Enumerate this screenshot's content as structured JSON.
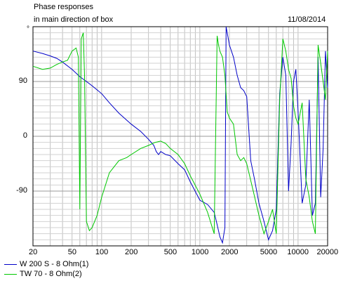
{
  "header": {
    "title_line1": "Phase responses",
    "title_line2": "in main direction of box",
    "date": "11/08/2014",
    "unit": "°"
  },
  "chart_data": {
    "type": "line",
    "title": "Phase responses in main direction of box",
    "xscale": "log",
    "xlim": [
      20,
      20000
    ],
    "ylim": [
      -180,
      180
    ],
    "y_ticks": [
      90,
      0,
      -90
    ],
    "x_tick_labels": [
      "20",
      "50",
      "100",
      "200",
      "500",
      "1000",
      "2000",
      "5000",
      "10000",
      "20000"
    ],
    "grid": true,
    "legend_position": "bottom-left",
    "series": [
      {
        "name": "W 200 S - 8 Ohm(1)",
        "color": "#0000c8",
        "x": [
          20,
          25,
          30,
          35,
          40,
          50,
          60,
          70,
          80,
          100,
          120,
          150,
          200,
          250,
          300,
          340,
          360,
          380,
          400,
          450,
          500,
          600,
          700,
          800,
          1000,
          1200,
          1400,
          1500,
          1600,
          1700,
          1800,
          1850,
          1900,
          2000,
          2200,
          2400,
          2600,
          2800,
          3000,
          3300,
          3600,
          4000,
          4500,
          5000,
          5500,
          6000,
          6500,
          7000,
          7500,
          8000,
          8500,
          9000,
          9500,
          10000,
          11000,
          12000,
          13000,
          14000,
          15000,
          16000,
          17000,
          18000,
          19000,
          20000
        ],
        "y": [
          140,
          136,
          132,
          128,
          122,
          110,
          98,
          90,
          83,
          70,
          55,
          38,
          20,
          8,
          -5,
          -15,
          -25,
          -30,
          -25,
          -30,
          -32,
          -45,
          -55,
          -75,
          -105,
          -112,
          -125,
          -145,
          -165,
          -175,
          -150,
          180,
          170,
          150,
          130,
          100,
          80,
          75,
          65,
          -40,
          -70,
          -110,
          -140,
          -170,
          -155,
          -120,
          70,
          130,
          100,
          -90,
          -10,
          90,
          110,
          40,
          -110,
          -80,
          60,
          -130,
          -110,
          130,
          -100,
          -20,
          140,
          80
        ]
      },
      {
        "name": "TW 70 - 8 Ohm(2)",
        "color": "#00c800",
        "x": [
          20,
          25,
          30,
          35,
          40,
          45,
          50,
          55,
          58,
          60,
          62,
          65,
          67,
          70,
          75,
          80,
          90,
          100,
          120,
          150,
          180,
          200,
          250,
          300,
          350,
          400,
          450,
          500,
          600,
          700,
          800,
          1000,
          1200,
          1400,
          1500,
          1550,
          1600,
          1700,
          1800,
          1900,
          2000,
          2200,
          2400,
          2600,
          2800,
          3000,
          3500,
          4000,
          4500,
          5000,
          5500,
          6000,
          6500,
          7000,
          7500,
          8000,
          8500,
          9000,
          9500,
          10000,
          11000,
          12000,
          13000,
          14000,
          15000,
          16000,
          17000,
          18000,
          19000,
          20000
        ],
        "y": [
          115,
          110,
          112,
          118,
          122,
          125,
          140,
          145,
          130,
          -120,
          160,
          170,
          100,
          -140,
          -155,
          -150,
          -130,
          -100,
          -60,
          -40,
          -35,
          -30,
          -20,
          -15,
          -10,
          -8,
          -12,
          -20,
          -30,
          -45,
          -65,
          -95,
          -125,
          -160,
          165,
          150,
          140,
          130,
          100,
          40,
          30,
          20,
          -30,
          -40,
          -35,
          -45,
          -90,
          -130,
          -160,
          -140,
          -120,
          -160,
          60,
          160,
          140,
          110,
          95,
          50,
          30,
          20,
          55,
          -70,
          -100,
          -140,
          -160,
          150,
          120,
          90,
          60,
          140
        ]
      }
    ]
  }
}
